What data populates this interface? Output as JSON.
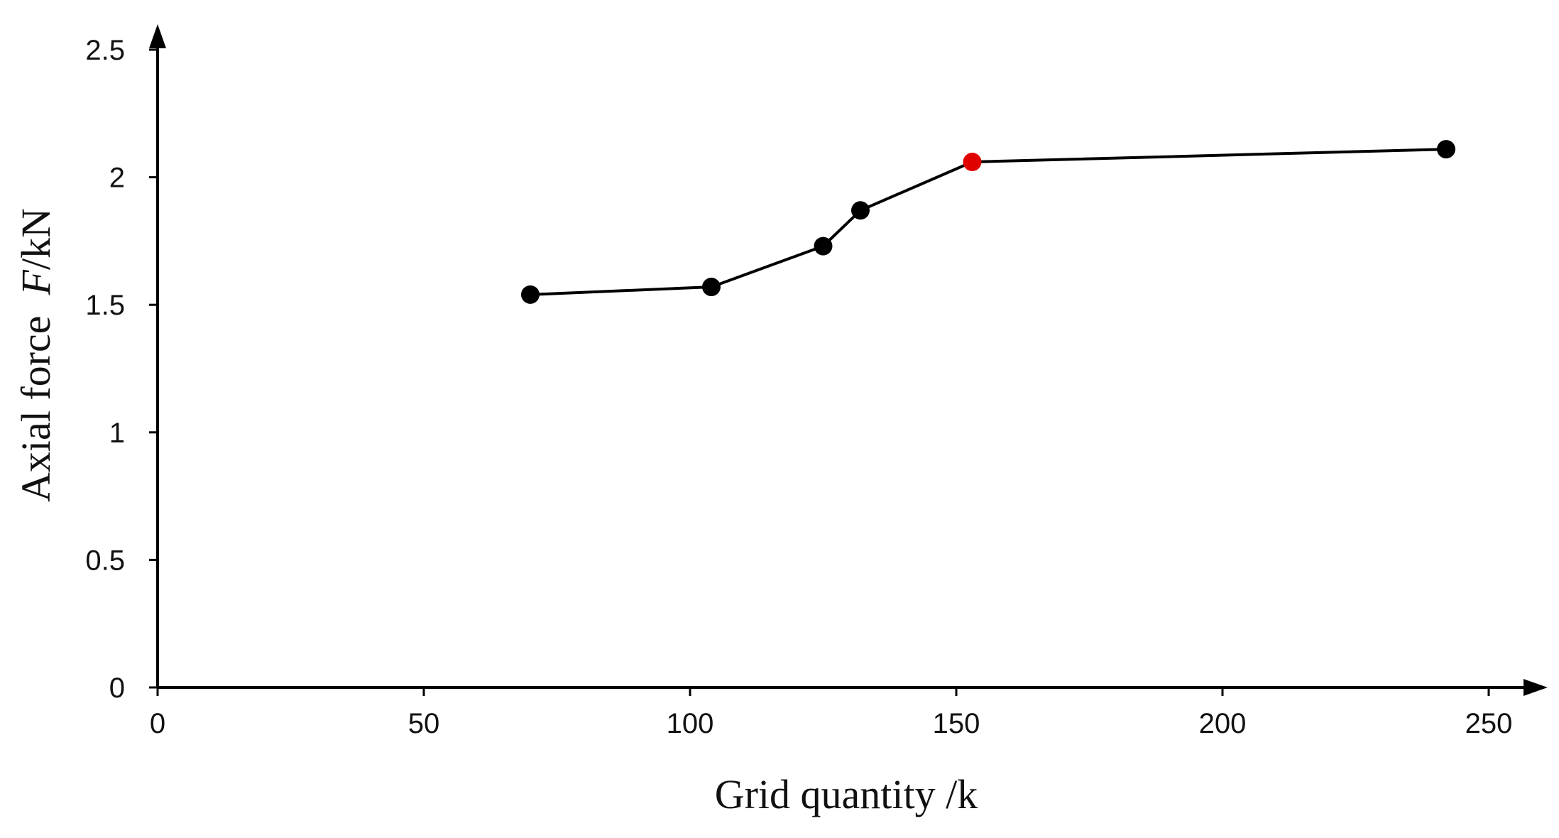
{
  "chart_data": {
    "type": "line",
    "xlabel": "Grid quantity /k",
    "ylabel_prefix": "Axial force  ",
    "ylabel_var": "F",
    "ylabel_unit": "/kN",
    "xlim": [
      0,
      250
    ],
    "ylim": [
      0,
      2.5
    ],
    "xticks": [
      "0",
      "50",
      "100",
      "150",
      "200",
      "250"
    ],
    "yticks": [
      "0",
      "0.5",
      "1",
      "1.5",
      "2",
      "2.5"
    ],
    "grid": false,
    "series": [
      {
        "x": [
          70,
          104,
          125,
          132,
          153,
          242
        ],
        "y": [
          1.54,
          1.57,
          1.73,
          1.87,
          2.06,
          2.11
        ],
        "highlight_index": 4
      }
    ],
    "colors": {
      "point": "#000000",
      "highlight": "#e00000",
      "line": "#000000"
    }
  }
}
